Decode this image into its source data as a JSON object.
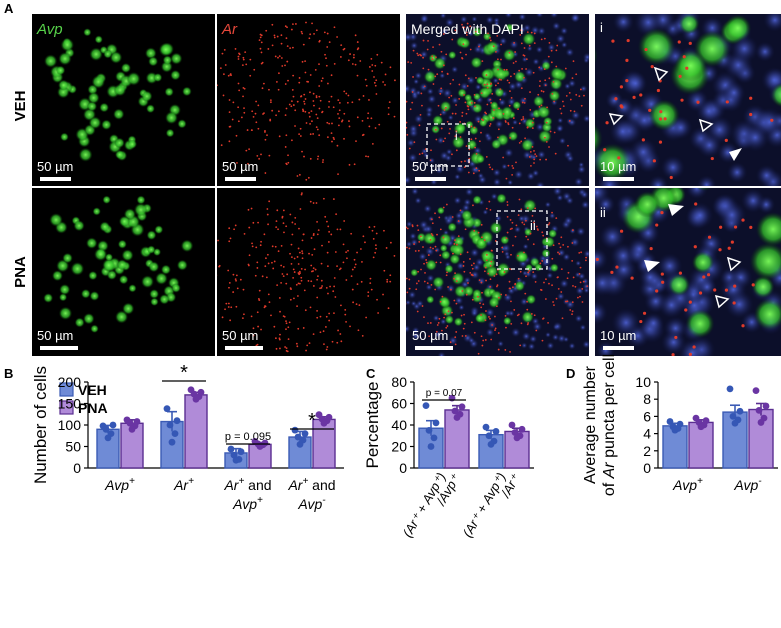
{
  "panel_labels": {
    "A": "A",
    "B": "B",
    "C": "C",
    "D": "D"
  },
  "panel_a": {
    "column_titles": [
      "Avp",
      "Ar",
      "Merged with DAPI",
      "i"
    ],
    "row_labels": [
      "VEH",
      "PNA"
    ],
    "scalebars": {
      "row1": [
        "50 µm",
        "50 µm",
        "50 µm",
        "10 µm"
      ],
      "row2": [
        "50 µm",
        "50 µm",
        "50 µm",
        "10 µm"
      ]
    },
    "inset_labels": [
      "i",
      "ii"
    ],
    "colors": {
      "avp": "#38c02f",
      "ar": "#e03a2a",
      "dapi": "#2b3a9e",
      "gap": "#ffffff"
    }
  },
  "legend": {
    "veh": "VEH",
    "pna": "PNA"
  },
  "series_colors": {
    "veh_fill": "#6f8bd6",
    "veh_edge": "#3b5bb5",
    "veh_dot": "#3557b5",
    "pna_fill": "#b08bd8",
    "pna_edge": "#5a2e91",
    "pna_dot": "#6a35a3"
  },
  "chart_data": [
    {
      "id": "B",
      "type": "bar",
      "ylabel": "Number of cells",
      "ylim": [
        0,
        200
      ],
      "yticks": [
        0,
        50,
        100,
        150,
        200
      ],
      "categories": [
        {
          "main": "Avp",
          "sup": "+",
          "line2": ""
        },
        {
          "main": "Ar",
          "sup": "+",
          "line2": ""
        },
        {
          "main": "Ar",
          "sup": "+",
          "mid": " and",
          "line2": "Avp",
          "line2sup": "+"
        },
        {
          "main": "Ar",
          "sup": "+",
          "mid": " and",
          "line2": "Avp",
          "line2sup": "-"
        }
      ],
      "series": [
        {
          "name": "VEH",
          "values": [
            90,
            108,
            35,
            72
          ],
          "errors": [
            9,
            23,
            10,
            13
          ],
          "points": [
            [
              98,
              100,
              90,
              80,
              70
            ],
            [
              138,
              110,
              100,
              80,
              60
            ],
            [
              44,
              38,
              30,
              20,
              18
            ],
            [
              88,
              80,
              72,
              65,
              55
            ]
          ]
        },
        {
          "name": "PNA",
          "values": [
            104,
            170,
            55,
            113
          ],
          "errors": [
            8,
            6,
            4,
            6
          ],
          "points": [
            [
              112,
              108,
              104,
              98,
              90
            ],
            [
              182,
              176,
              172,
              166,
              160
            ],
            [
              62,
              58,
              56,
              54,
              50
            ],
            [
              124,
              118,
              114,
              110,
              104
            ]
          ]
        }
      ],
      "annotations": [
        {
          "category": 1,
          "text": "*"
        },
        {
          "category": 2,
          "text": "p = 0.095"
        },
        {
          "category": 3,
          "text": "*"
        }
      ]
    },
    {
      "id": "C",
      "type": "bar",
      "ylabel": "Percentage",
      "ylim": [
        0,
        80
      ],
      "yticks": [
        0,
        20,
        40,
        60,
        80
      ],
      "categories": [
        {
          "text": "(Ar⁺ + Avp⁺)",
          "line2": "/Avp⁺"
        },
        {
          "text": "(Ar⁺ + Avp⁺)",
          "line2": "/Ar⁺"
        }
      ],
      "series": [
        {
          "name": "VEH",
          "values": [
            37,
            31
          ],
          "errors": [
            7,
            4
          ],
          "points": [
            [
              58,
              42,
              35,
              28,
              20
            ],
            [
              38,
              34,
              30,
              25,
              22
            ]
          ]
        },
        {
          "name": "PNA",
          "values": [
            54,
            34
          ],
          "errors": [
            4,
            3
          ],
          "points": [
            [
              65,
              57,
              53,
              50,
              47
            ],
            [
              40,
              36,
              33,
              30,
              28
            ]
          ]
        }
      ],
      "annotations": [
        {
          "category": 0,
          "text": "p = 0.07"
        }
      ]
    },
    {
      "id": "D",
      "type": "bar",
      "ylabel_line1": "Average number",
      "ylabel_line2_pre": "of ",
      "ylabel_line2_italic": "Ar",
      "ylabel_line2_post": " puncta per cell",
      "ylim": [
        0,
        10
      ],
      "yticks": [
        0,
        2,
        4,
        6,
        8,
        10
      ],
      "categories": [
        {
          "main": "Avp",
          "sup": "+"
        },
        {
          "main": "Avp",
          "sup": "-"
        }
      ],
      "series": [
        {
          "name": "VEH",
          "values": [
            4.9,
            6.5
          ],
          "errors": [
            0.3,
            0.8
          ],
          "points": [
            [
              5.4,
              5.1,
              4.8,
              4.6,
              4.4
            ],
            [
              9.2,
              6.6,
              6.0,
              5.6,
              5.2
            ]
          ]
        },
        {
          "name": "PNA",
          "values": [
            5.3,
            6.8
          ],
          "errors": [
            0.3,
            0.7
          ],
          "points": [
            [
              5.8,
              5.5,
              5.3,
              5.0,
              4.8
            ],
            [
              9.0,
              7.2,
              6.7,
              5.8,
              5.3
            ]
          ]
        }
      ]
    }
  ]
}
